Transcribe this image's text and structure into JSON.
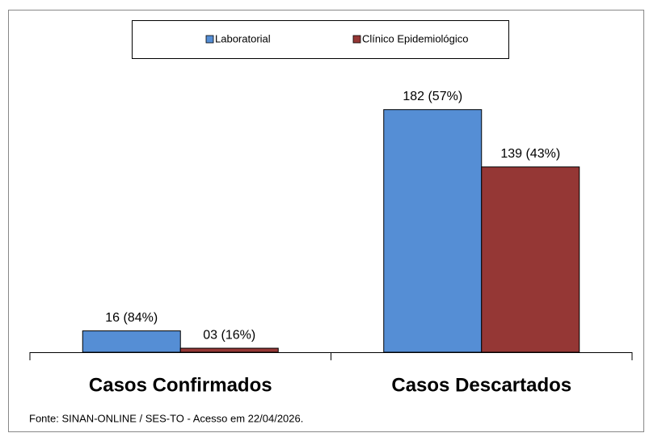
{
  "chart_data": {
    "type": "bar",
    "categories": [
      "Casos  Confirmados",
      "Casos Descartados"
    ],
    "series": [
      {
        "name": "Laboratorial",
        "color": "#558ed5",
        "values": [
          16,
          182
        ],
        "value_labels": [
          "16 (84%)",
          "182 (57%)"
        ]
      },
      {
        "name": "Clínico Epidemiológico",
        "color": "#953735",
        "values": [
          3,
          139
        ],
        "value_labels": [
          "03 (16%)",
          "139  (43%)"
        ]
      }
    ],
    "ylim": [
      0,
      200
    ],
    "legend": "top",
    "source": "Fonte: SINAN-ONLINE / SES-TO - Acesso em  22/04/2026."
  }
}
